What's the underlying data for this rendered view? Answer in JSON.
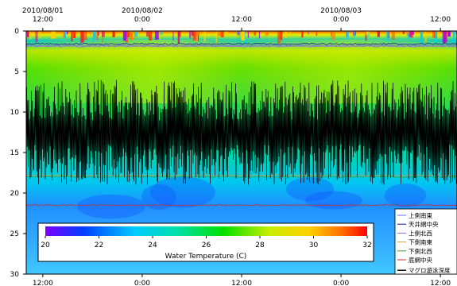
{
  "chart_data": {
    "type": "heatmap",
    "title": "",
    "xlabel": "",
    "ylabel": "",
    "x_range": [
      "2010/08/01 10:00",
      "2010/08/03 14:00"
    ],
    "x_ticks_top": [
      {
        "date": "2010/08/01",
        "time": "12:00",
        "t": "2010/08/01 12:00"
      },
      {
        "date": "2010/08/02",
        "time": "0:00",
        "t": "2010/08/02 0:00"
      },
      {
        "date": "",
        "time": "12:00",
        "t": "2010/08/02 12:00"
      },
      {
        "date": "2010/08/03",
        "time": "0:00",
        "t": "2010/08/03 0:00"
      },
      {
        "date": "",
        "time": "12:00",
        "t": "2010/08/03 12:00"
      }
    ],
    "x_ticks_bottom": [
      "12:00",
      "0:00",
      "12:00",
      "0:00",
      "12:00"
    ],
    "ylim": [
      30,
      0
    ],
    "y_ticks": [
      "0",
      "5",
      "10",
      "15",
      "20",
      "25",
      "30"
    ],
    "colorbar": {
      "label": "Water Temperature (C)",
      "min": 20,
      "max": 32,
      "ticks": [
        "20",
        "22",
        "24",
        "26",
        "28",
        "30",
        "32"
      ],
      "colors": [
        "#7a00ff",
        "#0040ff",
        "#00ccff",
        "#00e0a0",
        "#00e000",
        "#ccee00",
        "#ffd000",
        "#ff7000",
        "#ff0000"
      ]
    },
    "heatmap_bands": [
      {
        "depth_from": 0,
        "depth_to": 1,
        "temp_approx": 29.5
      },
      {
        "depth_from": 1,
        "depth_to": 4,
        "temp_approx": 28.0
      },
      {
        "depth_from": 4,
        "depth_to": 12,
        "temp_approx": 27.5
      },
      {
        "depth_from": 12,
        "depth_to": 18,
        "temp_approx": 26.5
      },
      {
        "depth_from": 18,
        "depth_to": 23,
        "temp_approx": 25.0
      },
      {
        "depth_from": 23,
        "depth_to": 30,
        "temp_approx": 24.5
      }
    ],
    "series": [
      {
        "name": "上側南東",
        "color": "#6a6aff",
        "depth": 1.8
      },
      {
        "name": "天井網中央",
        "color": "#1a1a9a",
        "depth": 1.6
      },
      {
        "name": "上側北西",
        "color": "#9a6ad0",
        "depth": 1.9
      },
      {
        "name": "下側南東",
        "color": "#d0a040",
        "depth": 17.8
      },
      {
        "name": "下側北西",
        "color": "#40a040",
        "depth": 18.0
      },
      {
        "name": "底網中央",
        "color": "#c03030",
        "depth": 21.5
      },
      {
        "name": "マグロ遊泳深度",
        "color": "#000000",
        "depth_band": [
          6,
          19
        ]
      }
    ]
  }
}
